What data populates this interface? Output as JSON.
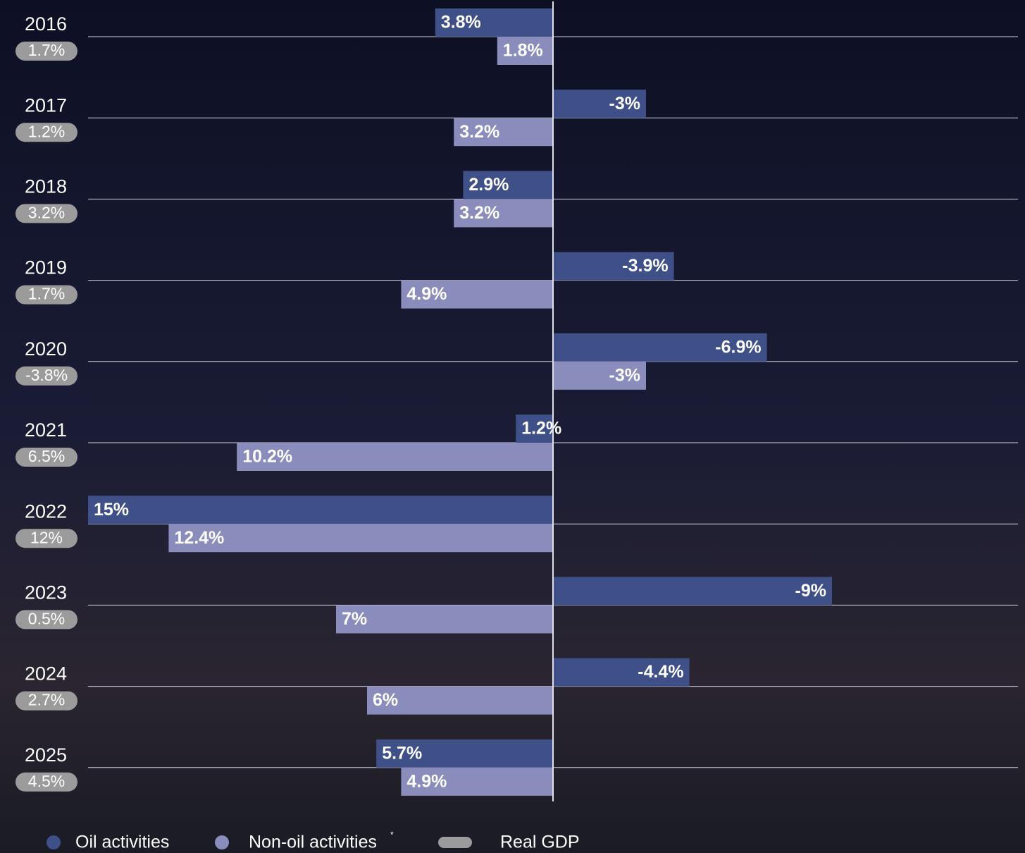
{
  "chart_data": {
    "type": "bar",
    "orientation": "horizontal",
    "categories": [
      "2016",
      "2017",
      "2018",
      "2019",
      "2020",
      "2021",
      "2022",
      "2023",
      "2024",
      "2025"
    ],
    "xlim": [
      15,
      -15
    ],
    "series": [
      {
        "name": "Oil activities",
        "color": "#3f4f87",
        "values": [
          3.8,
          -3,
          2.9,
          -3.9,
          -6.9,
          1.2,
          15,
          -9,
          -4.4,
          5.7
        ],
        "value_labels": [
          "3.8%",
          "-3%",
          "2.9%",
          "-3.9%",
          "-6.9%",
          "1.2%",
          "15%",
          "-9%",
          "-4.4%",
          "5.7%"
        ]
      },
      {
        "name": "Non-oil activities",
        "color": "#8a8cbb",
        "values": [
          1.8,
          3.2,
          3.2,
          4.9,
          -3,
          10.2,
          12.4,
          7,
          6,
          4.9
        ],
        "value_labels": [
          "1.8%",
          "3.2%",
          "3.2%",
          "4.9%",
          "-3%",
          "10.2%",
          "12.4%",
          "7%",
          "6%",
          "4.9%"
        ]
      },
      {
        "name": "Real GDP",
        "color": "#9b9b9b",
        "values": [
          1.7,
          1.2,
          3.2,
          1.7,
          -3.8,
          6.5,
          12,
          0.5,
          2.7,
          4.5
        ],
        "value_labels": [
          "1.7%",
          "1.2%",
          "3.2%",
          "1.7%",
          "-3.8%",
          "6.5%",
          "12%",
          "0.5%",
          "2.7%",
          "4.5%"
        ]
      }
    ],
    "legend_footnote_mark": "*"
  }
}
